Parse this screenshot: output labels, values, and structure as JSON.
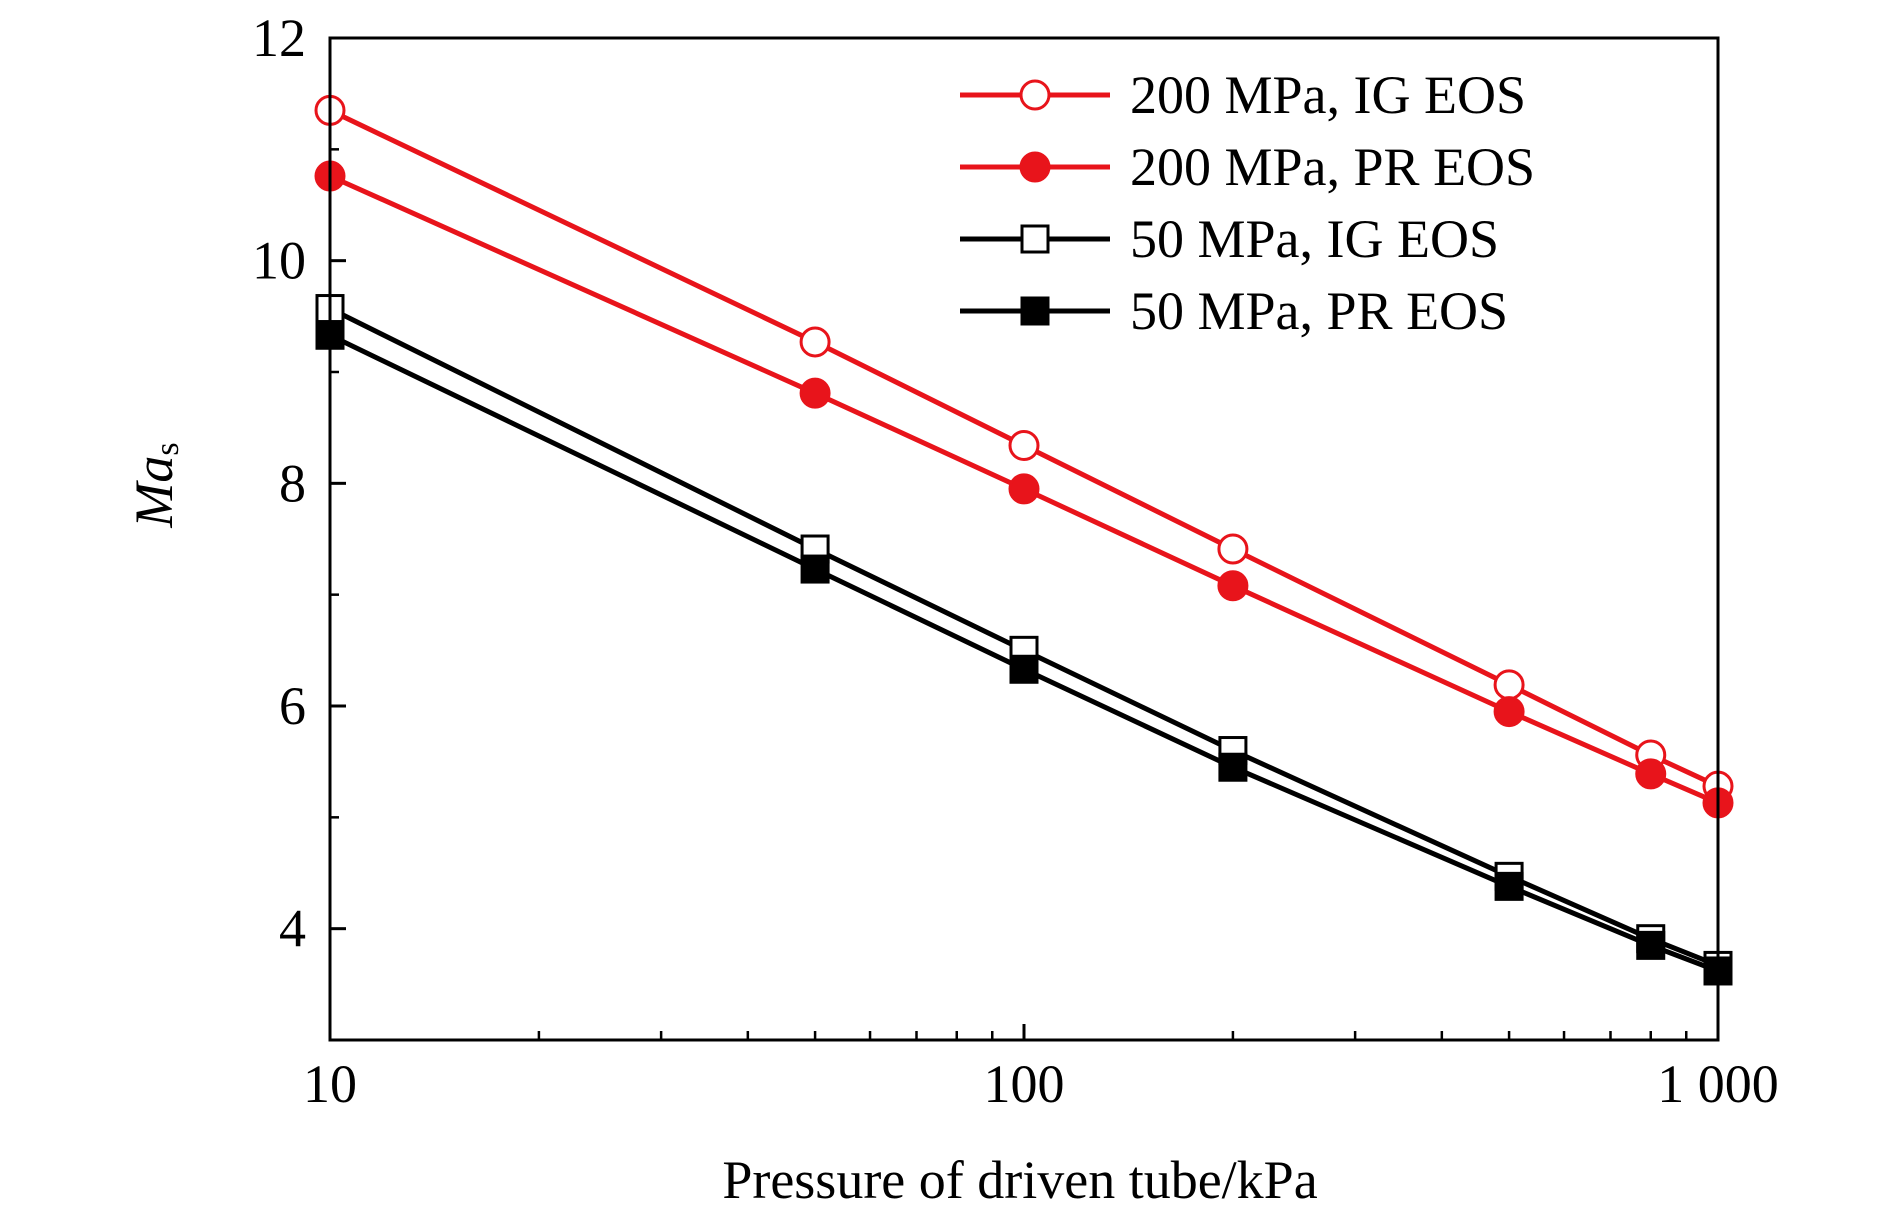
{
  "chart_data": {
    "type": "line",
    "xlabel": "Pressure of driven tube/kPa",
    "ylabel_main": "Ma",
    "ylabel_sub": "s",
    "x_scale": "log",
    "xlim": [
      10,
      1000
    ],
    "ylim": [
      3,
      12
    ],
    "x_ticks": [
      10,
      100,
      1000
    ],
    "x_tick_labels": [
      "10",
      "100",
      "1 000"
    ],
    "y_ticks": [
      4,
      6,
      8,
      10,
      12
    ],
    "y_tick_labels": [
      "4",
      "6",
      "8",
      "10",
      "12"
    ],
    "grid": false,
    "legend_position": "top-right",
    "series": [
      {
        "name": "200 MPa, IG EOS",
        "color": "#e8141b",
        "marker": "circle-open",
        "x": [
          10,
          50,
          100,
          200,
          500,
          800,
          1000
        ],
        "y": [
          11.35,
          9.27,
          8.34,
          7.41,
          6.19,
          5.56,
          5.28
        ]
      },
      {
        "name": "200 MPa, PR EOS",
        "color": "#e8141b",
        "marker": "circle-filled",
        "x": [
          10,
          50,
          100,
          200,
          500,
          800,
          1000
        ],
        "y": [
          10.76,
          8.81,
          7.95,
          7.08,
          5.95,
          5.39,
          5.13
        ]
      },
      {
        "name": "50 MPa, IG EOS",
        "color": "#000000",
        "marker": "square-open",
        "x": [
          10,
          50,
          100,
          200,
          500,
          800,
          1000
        ],
        "y": [
          9.57,
          7.41,
          6.5,
          5.6,
          4.47,
          3.91,
          3.67
        ]
      },
      {
        "name": "50 MPa, PR EOS",
        "color": "#000000",
        "marker": "square-filled",
        "x": [
          10,
          50,
          100,
          200,
          500,
          800,
          1000
        ],
        "y": [
          9.33,
          7.23,
          6.33,
          5.45,
          4.38,
          3.85,
          3.62
        ]
      }
    ]
  }
}
